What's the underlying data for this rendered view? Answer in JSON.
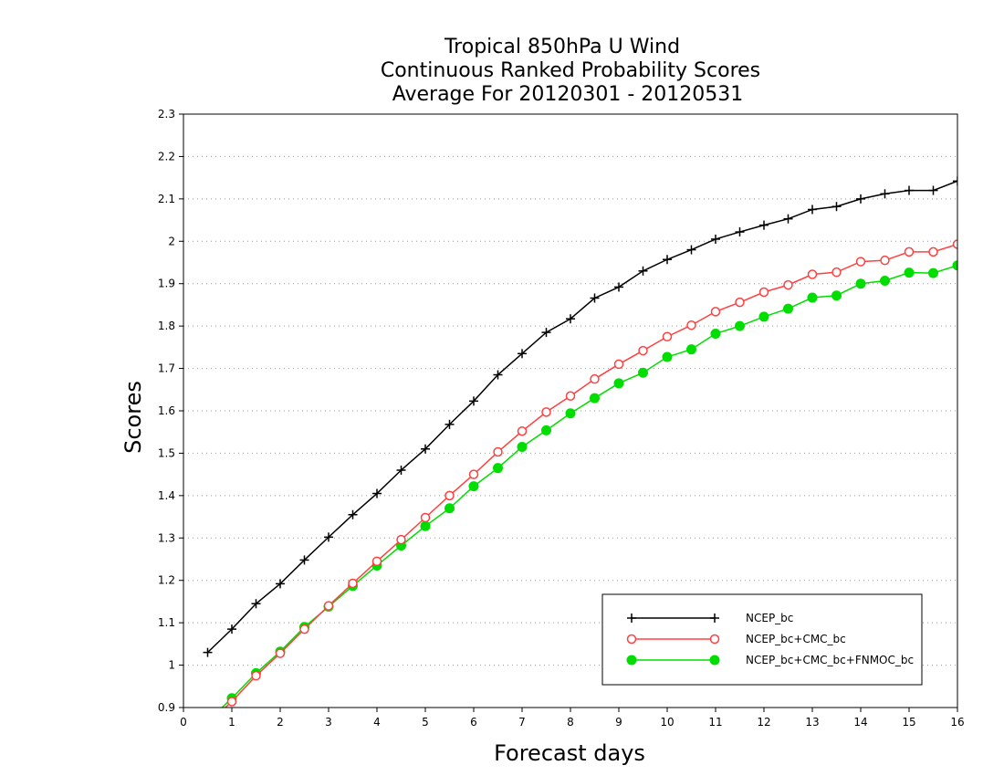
{
  "chart_data": {
    "type": "line",
    "title_lines": [
      "Tropical 850hPa U Wind",
      "Continuous Ranked Probability Scores",
      "Average For 20120301 - 20120531"
    ],
    "xlabel": "Forecast days",
    "ylabel": "Scores",
    "xlim": [
      0,
      16
    ],
    "ylim": [
      0.9,
      2.3
    ],
    "x_ticks": [
      0,
      1,
      2,
      3,
      4,
      5,
      6,
      7,
      8,
      9,
      10,
      11,
      12,
      13,
      14,
      15,
      16
    ],
    "y_ticks": [
      0.9,
      1,
      1.1,
      1.2,
      1.3,
      1.4,
      1.5,
      1.6,
      1.7,
      1.8,
      1.9,
      2,
      2.1,
      2.2,
      2.3
    ],
    "y_tick_labels": [
      "0.9",
      "1",
      "1.1",
      "1.2",
      "1.3",
      "1.4",
      "1.5",
      "1.6",
      "1.7",
      "1.8",
      "1.9",
      "2",
      "2.1",
      "2.2",
      "2.3"
    ],
    "grid": "horizontal dotted",
    "legend_position": "bottom-right",
    "x": [
      0.5,
      1,
      1.5,
      2,
      2.5,
      3,
      3.5,
      4,
      4.5,
      5,
      5.5,
      6,
      6.5,
      7,
      7.5,
      8,
      8.5,
      9,
      9.5,
      10,
      10.5,
      11,
      11.5,
      12,
      12.5,
      13,
      13.5,
      14,
      14.5,
      15,
      15.5,
      16
    ],
    "series": [
      {
        "name": "NCEP_bc",
        "color": "#000000",
        "marker": "plus",
        "values": [
          1.03,
          1.085,
          1.145,
          1.192,
          1.248,
          1.302,
          1.355,
          1.405,
          1.46,
          1.51,
          1.568,
          1.623,
          1.685,
          1.735,
          1.785,
          1.817,
          1.866,
          1.892,
          1.93,
          1.957,
          1.98,
          2.005,
          2.022,
          2.038,
          2.053,
          2.075,
          2.082,
          2.1,
          2.112,
          2.12,
          2.12,
          2.142
        ]
      },
      {
        "name": "NCEP_bc+CMC_bc",
        "color": "#ff4040",
        "marker": "open-circle",
        "values": [
          0.862,
          0.914,
          0.975,
          1.028,
          1.085,
          1.14,
          1.193,
          1.245,
          1.296,
          1.348,
          1.4,
          1.45,
          1.503,
          1.552,
          1.597,
          1.635,
          1.675,
          1.71,
          1.742,
          1.775,
          1.802,
          1.834,
          1.856,
          1.88,
          1.897,
          1.922,
          1.927,
          1.952,
          1.955,
          1.975,
          1.975,
          1.993
        ]
      },
      {
        "name": "NCEP_bc+CMC_bc+FNMOC_bc",
        "color": "#00dd00",
        "marker": "filled-circle",
        "values": [
          0.868,
          0.922,
          0.981,
          1.032,
          1.09,
          1.138,
          1.187,
          1.235,
          1.282,
          1.328,
          1.37,
          1.422,
          1.465,
          1.515,
          1.554,
          1.594,
          1.63,
          1.665,
          1.69,
          1.727,
          1.745,
          1.782,
          1.8,
          1.822,
          1.841,
          1.867,
          1.872,
          1.9,
          1.907,
          1.926,
          1.925,
          1.943
        ]
      }
    ]
  }
}
